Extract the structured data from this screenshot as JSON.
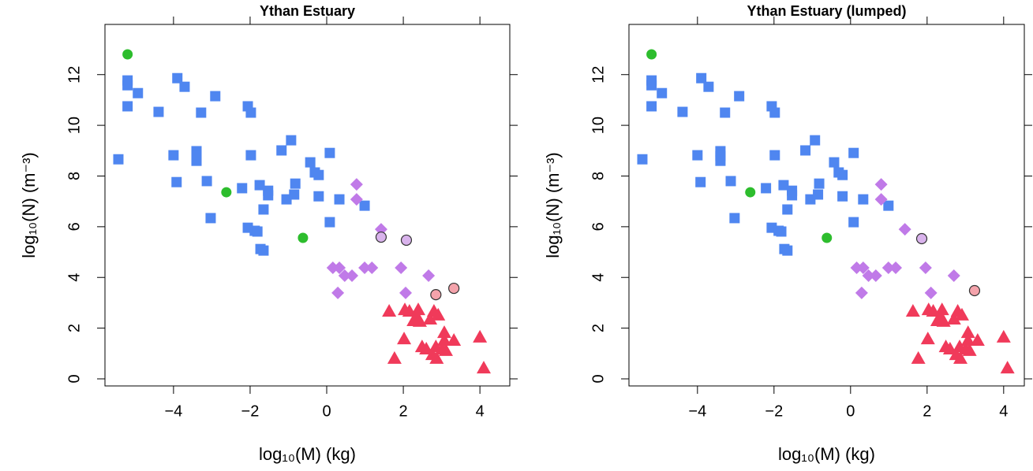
{
  "chart_data": [
    {
      "type": "scatter",
      "title": "Ythan Estuary",
      "x_label": "log₁₀(M) (kg)",
      "y_label": "log₁₀(N) (m⁻³)",
      "xlim": [
        -5.79,
        4.78
      ],
      "ylim": [
        -0.28,
        13.98
      ],
      "xticks": [
        {
          "value": -4,
          "label": "−4"
        },
        {
          "value": -2,
          "label": "−2"
        },
        0,
        2,
        4
      ],
      "yticks": [
        0,
        2,
        4,
        6,
        8,
        10,
        12
      ],
      "series": [
        {
          "color": "#4f86f0",
          "marker": "square",
          "x": [
            -5.44,
            -5.2,
            -5.2,
            -5.2,
            -4.93,
            -4.39,
            -4.0,
            -3.92,
            -3.9,
            -3.71,
            -3.4,
            -3.4,
            -3.4,
            -3.28,
            -3.13,
            -3.03,
            -2.91,
            -2.21,
            -2.06,
            -2.06,
            -1.98,
            -1.98,
            -1.88,
            -1.81,
            -1.75,
            -1.73,
            -1.65,
            -1.65,
            -1.53,
            -1.53,
            -1.18,
            -1.05,
            -0.93,
            -0.85,
            -0.82,
            -0.43,
            -0.31,
            -0.21,
            -0.21,
            0.08,
            0.08,
            0.33,
            0.99
          ],
          "values": [
            8.66,
            11.77,
            11.58,
            10.75,
            11.27,
            10.53,
            8.82,
            7.76,
            11.86,
            11.52,
            8.98,
            8.79,
            8.6,
            10.5,
            7.8,
            6.34,
            11.15,
            7.52,
            5.96,
            10.75,
            10.5,
            8.82,
            5.84,
            5.81,
            7.64,
            5.12,
            6.68,
            5.06,
            7.42,
            7.24,
            9.01,
            7.08,
            9.41,
            7.27,
            7.7,
            8.54,
            8.14,
            8.04,
            7.2,
            8.91,
            6.18,
            7.08,
            6.83
          ]
        },
        {
          "color": "#2dbd2d",
          "marker": "circle",
          "x": [
            -5.2,
            -2.62,
            -0.62
          ],
          "values": [
            12.8,
            7.36,
            5.56
          ]
        },
        {
          "color": "#c07ae8",
          "marker": "diamond",
          "x": [
            0.78,
            0.78,
            1.42,
            0.16,
            0.33,
            0.29,
            0.47,
            0.66,
            0.99,
            1.18,
            1.94,
            2.06,
            2.66
          ],
          "values": [
            7.67,
            7.08,
            5.9,
            4.38,
            4.38,
            3.39,
            4.07,
            4.07,
            4.38,
            4.38,
            4.38,
            3.39,
            4.07
          ]
        },
        {
          "color": "#d9b3ec",
          "marker": "circle",
          "stroke": "#333333",
          "x": [
            1.42,
            2.08
          ],
          "values": [
            5.59,
            5.47
          ]
        },
        {
          "color": "#f4a3ab",
          "marker": "circle",
          "stroke": "#333333",
          "x": [
            2.85,
            3.32
          ],
          "values": [
            3.32,
            3.57
          ]
        },
        {
          "color": "#f03a5a",
          "marker": "triangle",
          "x": [
            1.63,
            1.77,
            2.02,
            2.04,
            2.16,
            2.27,
            2.35,
            2.39,
            2.43,
            2.49,
            2.6,
            2.7,
            2.76,
            2.8,
            2.85,
            2.87,
            2.91,
            3.01,
            3.07,
            3.07,
            3.11,
            3.32,
            4.0,
            4.1
          ],
          "values": [
            2.67,
            0.81,
            1.58,
            2.73,
            2.67,
            2.3,
            2.45,
            2.73,
            2.27,
            1.27,
            1.18,
            2.36,
            0.96,
            2.67,
            1.27,
            0.81,
            2.52,
            1.18,
            1.83,
            1.52,
            1.12,
            1.52,
            1.65,
            0.43
          ]
        }
      ]
    },
    {
      "type": "scatter",
      "title": "Ythan Estuary (lumped)",
      "x_label": "log₁₀(M) (kg)",
      "y_label": "log₁₀(N) (m⁻³)",
      "xlim": [
        -5.79,
        4.54
      ],
      "ylim": [
        -0.28,
        13.98
      ],
      "xticks": [
        {
          "value": -4,
          "label": "−4"
        },
        {
          "value": -2,
          "label": "−2"
        },
        0,
        2,
        4
      ],
      "yticks": [
        0,
        2,
        4,
        6,
        8,
        10,
        12
      ],
      "series": [
        {
          "color": "#4f86f0",
          "marker": "square",
          "x": [
            -5.44,
            -5.2,
            -5.2,
            -5.2,
            -4.93,
            -4.39,
            -4.0,
            -3.92,
            -3.9,
            -3.71,
            -3.4,
            -3.4,
            -3.4,
            -3.28,
            -3.13,
            -3.03,
            -2.91,
            -2.21,
            -2.06,
            -2.06,
            -1.98,
            -1.98,
            -1.88,
            -1.81,
            -1.75,
            -1.73,
            -1.65,
            -1.65,
            -1.53,
            -1.53,
            -1.18,
            -1.05,
            -0.93,
            -0.85,
            -0.82,
            -0.43,
            -0.31,
            -0.21,
            -0.21,
            0.08,
            0.08,
            0.33,
            0.99
          ],
          "values": [
            8.66,
            11.77,
            11.58,
            10.75,
            11.27,
            10.53,
            8.82,
            7.76,
            11.86,
            11.52,
            8.98,
            8.79,
            8.6,
            10.5,
            7.8,
            6.34,
            11.15,
            7.52,
            5.96,
            10.75,
            10.5,
            8.82,
            5.84,
            5.81,
            7.64,
            5.12,
            6.68,
            5.06,
            7.42,
            7.24,
            9.01,
            7.08,
            9.41,
            7.27,
            7.7,
            8.54,
            8.14,
            8.04,
            7.2,
            8.91,
            6.18,
            7.08,
            6.83
          ]
        },
        {
          "color": "#2dbd2d",
          "marker": "circle",
          "x": [
            -5.2,
            -2.62,
            -0.62
          ],
          "values": [
            12.8,
            7.36,
            5.56
          ]
        },
        {
          "color": "#c07ae8",
          "marker": "diamond",
          "x": [
            0.8,
            0.8,
            1.42,
            0.16,
            0.33,
            0.29,
            0.47,
            0.66,
            0.99,
            1.18,
            1.96,
            2.1,
            2.7
          ],
          "values": [
            7.67,
            7.08,
            5.9,
            4.38,
            4.38,
            3.39,
            4.07,
            4.07,
            4.38,
            4.38,
            4.38,
            3.39,
            4.07
          ]
        },
        {
          "color": "#d9b3ec",
          "marker": "circle",
          "stroke": "#333333",
          "x": [
            1.86
          ],
          "values": [
            5.53
          ]
        },
        {
          "color": "#f4a3ab",
          "marker": "circle",
          "stroke": "#333333",
          "x": [
            3.24
          ],
          "values": [
            3.48
          ]
        },
        {
          "color": "#f03a5a",
          "marker": "triangle",
          "x": [
            1.63,
            1.77,
            2.02,
            2.04,
            2.16,
            2.27,
            2.35,
            2.39,
            2.43,
            2.49,
            2.6,
            2.7,
            2.76,
            2.8,
            2.85,
            2.87,
            2.91,
            3.01,
            3.07,
            3.07,
            3.11,
            3.32,
            4.0,
            4.1
          ],
          "values": [
            2.67,
            0.81,
            1.58,
            2.73,
            2.67,
            2.3,
            2.45,
            2.73,
            2.27,
            1.27,
            1.18,
            2.36,
            0.96,
            2.67,
            1.27,
            0.81,
            2.52,
            1.18,
            1.83,
            1.52,
            1.12,
            1.52,
            1.65,
            0.43
          ]
        }
      ]
    }
  ]
}
